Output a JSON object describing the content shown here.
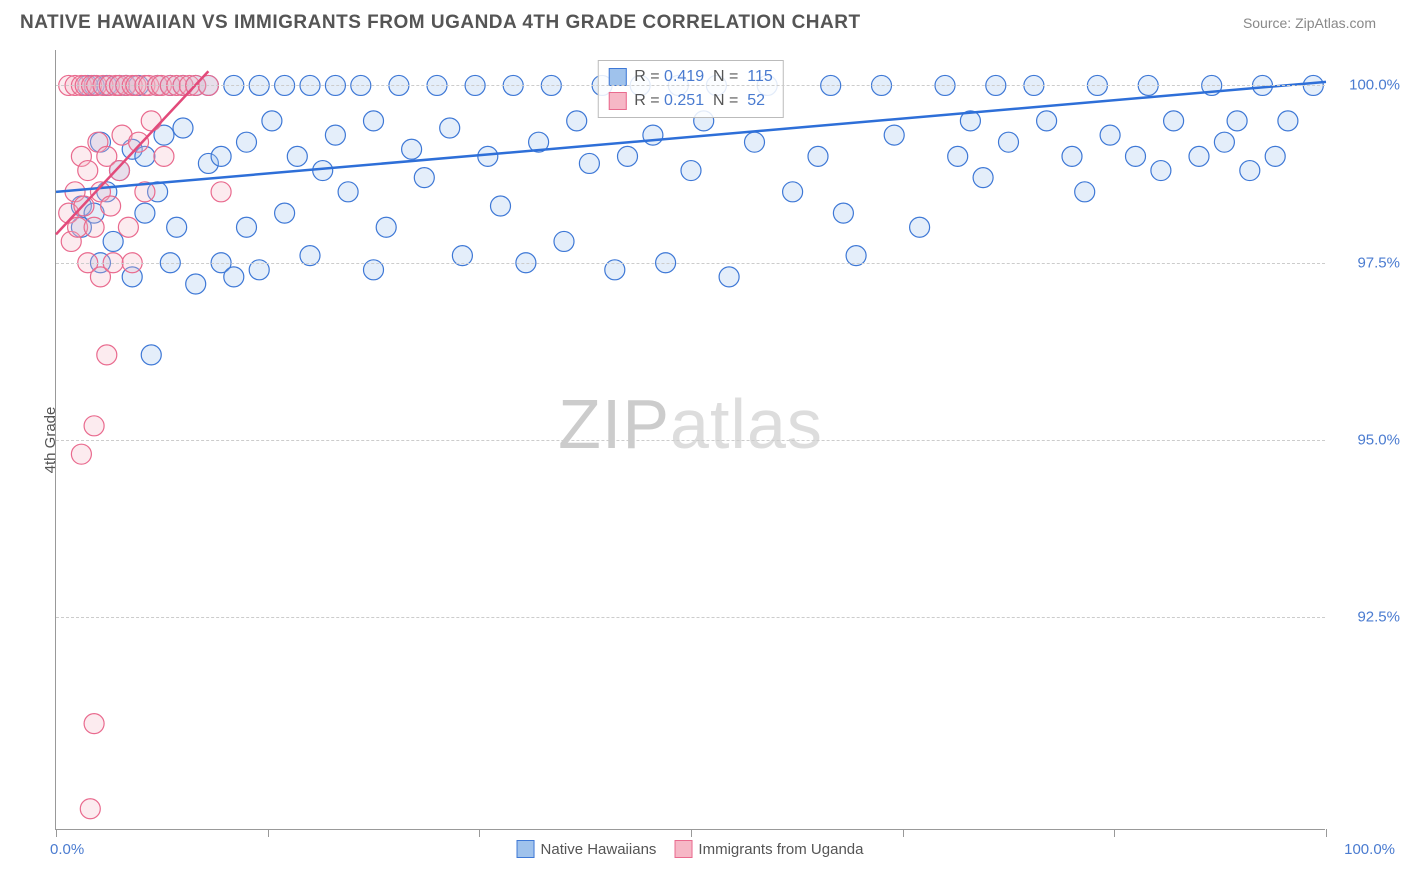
{
  "header": {
    "title": "NATIVE HAWAIIAN VS IMMIGRANTS FROM UGANDA 4TH GRADE CORRELATION CHART",
    "source": "Source: ZipAtlas.com"
  },
  "chart": {
    "type": "scatter",
    "ylabel": "4th Grade",
    "watermark_a": "ZIP",
    "watermark_b": "atlas",
    "background_color": "#ffffff",
    "grid_color": "#cccccc",
    "axis_color": "#999999",
    "tick_label_color": "#4a7bd0",
    "xlim": [
      0,
      100
    ],
    "ylim": [
      89.5,
      100.5
    ],
    "x_ticks": [
      0,
      16.67,
      33.33,
      50,
      66.67,
      83.33,
      100
    ],
    "y_ticks": [
      {
        "v": 100.0,
        "label": "100.0%"
      },
      {
        "v": 97.5,
        "label": "97.5%"
      },
      {
        "v": 95.0,
        "label": "95.0%"
      },
      {
        "v": 92.5,
        "label": "92.5%"
      }
    ],
    "x_axis_left_label": "0.0%",
    "x_axis_right_label": "100.0%",
    "marker_radius": 10,
    "marker_stroke_width": 1.2,
    "marker_fill_opacity": 0.28,
    "trend_line_width": 2.5,
    "series": [
      {
        "name": "Native Hawaiians",
        "fill": "#9fc2ec",
        "stroke": "#3e78d6",
        "trend": {
          "x1": 0,
          "y1": 98.5,
          "x2": 100,
          "y2": 100.05,
          "color": "#2e6fd8"
        },
        "corr": {
          "r": "0.419",
          "n": "115"
        },
        "points": [
          [
            2,
            98.0
          ],
          [
            2,
            98.3
          ],
          [
            2.5,
            100
          ],
          [
            3,
            98.2
          ],
          [
            3,
            100
          ],
          [
            3.5,
            97.5
          ],
          [
            3.5,
            99.2
          ],
          [
            4,
            98.5
          ],
          [
            4,
            100
          ],
          [
            4.5,
            97.8
          ],
          [
            5,
            100
          ],
          [
            5,
            98.8
          ],
          [
            5.5,
            100
          ],
          [
            6,
            99.1
          ],
          [
            6,
            97.3
          ],
          [
            6.5,
            100
          ],
          [
            7,
            98.2
          ],
          [
            7,
            99.0
          ],
          [
            7.5,
            96.2
          ],
          [
            8,
            100
          ],
          [
            8,
            98.5
          ],
          [
            8.5,
            99.3
          ],
          [
            9,
            100
          ],
          [
            9,
            97.5
          ],
          [
            9.5,
            98.0
          ],
          [
            10,
            100
          ],
          [
            10,
            99.4
          ],
          [
            11,
            97.2
          ],
          [
            11,
            100
          ],
          [
            12,
            98.9
          ],
          [
            12,
            100
          ],
          [
            13,
            97.5
          ],
          [
            13,
            99.0
          ],
          [
            14,
            100
          ],
          [
            14,
            97.3
          ],
          [
            15,
            99.2
          ],
          [
            15,
            98.0
          ],
          [
            16,
            100
          ],
          [
            16,
            97.4
          ],
          [
            17,
            99.5
          ],
          [
            18,
            100
          ],
          [
            18,
            98.2
          ],
          [
            19,
            99.0
          ],
          [
            20,
            100
          ],
          [
            20,
            97.6
          ],
          [
            21,
            98.8
          ],
          [
            22,
            100
          ],
          [
            22,
            99.3
          ],
          [
            23,
            98.5
          ],
          [
            24,
            100
          ],
          [
            25,
            99.5
          ],
          [
            25,
            97.4
          ],
          [
            26,
            98.0
          ],
          [
            27,
            100
          ],
          [
            28,
            99.1
          ],
          [
            29,
            98.7
          ],
          [
            30,
            100
          ],
          [
            31,
            99.4
          ],
          [
            32,
            97.6
          ],
          [
            33,
            100
          ],
          [
            34,
            99.0
          ],
          [
            35,
            98.3
          ],
          [
            36,
            100
          ],
          [
            37,
            97.5
          ],
          [
            38,
            99.2
          ],
          [
            39,
            100
          ],
          [
            40,
            97.8
          ],
          [
            41,
            99.5
          ],
          [
            42,
            98.9
          ],
          [
            43,
            100
          ],
          [
            44,
            97.4
          ],
          [
            45,
            99.0
          ],
          [
            46,
            100
          ],
          [
            47,
            99.3
          ],
          [
            48,
            97.5
          ],
          [
            49,
            100
          ],
          [
            50,
            98.8
          ],
          [
            51,
            99.5
          ],
          [
            52,
            100
          ],
          [
            53,
            97.3
          ],
          [
            55,
            99.2
          ],
          [
            56,
            100
          ],
          [
            58,
            98.5
          ],
          [
            60,
            99.0
          ],
          [
            61,
            100
          ],
          [
            62,
            98.2
          ],
          [
            63,
            97.6
          ],
          [
            65,
            100
          ],
          [
            66,
            99.3
          ],
          [
            68,
            98.0
          ],
          [
            70,
            100
          ],
          [
            71,
            99.0
          ],
          [
            72,
            99.5
          ],
          [
            73,
            98.7
          ],
          [
            74,
            100
          ],
          [
            75,
            99.2
          ],
          [
            77,
            100
          ],
          [
            78,
            99.5
          ],
          [
            80,
            99.0
          ],
          [
            81,
            98.5
          ],
          [
            82,
            100
          ],
          [
            83,
            99.3
          ],
          [
            85,
            99.0
          ],
          [
            86,
            100
          ],
          [
            87,
            98.8
          ],
          [
            88,
            99.5
          ],
          [
            90,
            99.0
          ],
          [
            91,
            100
          ],
          [
            92,
            99.2
          ],
          [
            93,
            99.5
          ],
          [
            94,
            98.8
          ],
          [
            95,
            100
          ],
          [
            96,
            99.0
          ],
          [
            97,
            99.5
          ],
          [
            99,
            100
          ]
        ]
      },
      {
        "name": "Immigrants from Uganda",
        "fill": "#f6b7c6",
        "stroke": "#e96a8e",
        "trend": {
          "x1": 0,
          "y1": 97.9,
          "x2": 12,
          "y2": 100.2,
          "color": "#e24a7a"
        },
        "corr": {
          "r": "0.251",
          "n": "52"
        },
        "points": [
          [
            1,
            98.2
          ],
          [
            1,
            100
          ],
          [
            1.2,
            97.8
          ],
          [
            1.5,
            98.5
          ],
          [
            1.5,
            100
          ],
          [
            1.7,
            98.0
          ],
          [
            2,
            99.0
          ],
          [
            2,
            100
          ],
          [
            2,
            94.8
          ],
          [
            2.2,
            98.3
          ],
          [
            2.3,
            100
          ],
          [
            2.5,
            97.5
          ],
          [
            2.5,
            98.8
          ],
          [
            2.7,
            89.8
          ],
          [
            2.8,
            100
          ],
          [
            3,
            91.0
          ],
          [
            3,
            95.2
          ],
          [
            3,
            98.0
          ],
          [
            3.2,
            100
          ],
          [
            3.3,
            99.2
          ],
          [
            3.5,
            97.3
          ],
          [
            3.5,
            98.5
          ],
          [
            3.7,
            100
          ],
          [
            4,
            96.2
          ],
          [
            4,
            99.0
          ],
          [
            4.2,
            100
          ],
          [
            4.3,
            98.3
          ],
          [
            4.5,
            97.5
          ],
          [
            4.7,
            100
          ],
          [
            5,
            98.8
          ],
          [
            5,
            100
          ],
          [
            5.2,
            99.3
          ],
          [
            5.5,
            100
          ],
          [
            5.7,
            98.0
          ],
          [
            6,
            100
          ],
          [
            6,
            97.5
          ],
          [
            6.3,
            100
          ],
          [
            6.5,
            99.2
          ],
          [
            7,
            100
          ],
          [
            7,
            98.5
          ],
          [
            7.3,
            100
          ],
          [
            7.5,
            99.5
          ],
          [
            8,
            100
          ],
          [
            8.3,
            100
          ],
          [
            8.5,
            99.0
          ],
          [
            9,
            100
          ],
          [
            9.5,
            100
          ],
          [
            10,
            100
          ],
          [
            10.5,
            100
          ],
          [
            11,
            100
          ],
          [
            12,
            100
          ],
          [
            13,
            98.5
          ]
        ]
      }
    ],
    "legend": [
      {
        "label": "Native Hawaiians",
        "fill": "#9fc2ec",
        "stroke": "#3e78d6"
      },
      {
        "label": "Immigrants from Uganda",
        "fill": "#f6b7c6",
        "stroke": "#e96a8e"
      }
    ]
  }
}
